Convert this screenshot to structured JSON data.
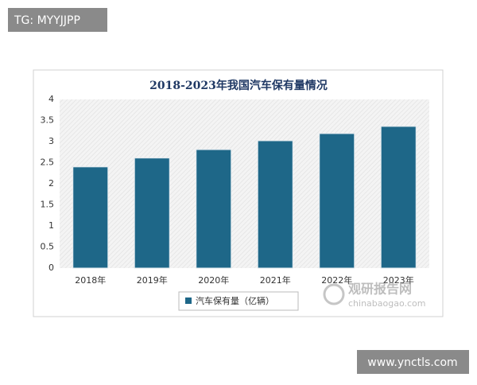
{
  "chart_data": {
    "type": "bar",
    "title": "2018-2023年我国汽车保有量情况",
    "categories": [
      "2018年",
      "2019年",
      "2020年",
      "2021年",
      "2022年",
      "2023年"
    ],
    "series": [
      {
        "name": "汽车保有量（亿辆）",
        "color": "#1e6788",
        "values": [
          2.4,
          2.61,
          2.81,
          3.02,
          3.19,
          3.36
        ]
      }
    ],
    "ylim": [
      0,
      4
    ],
    "yticks": [
      0,
      0.5,
      1,
      1.5,
      2,
      2.5,
      3,
      3.5,
      4
    ],
    "grid": false,
    "legend": "bottom"
  },
  "watermark": {
    "name": "观研报告网",
    "url": "chinabaogao.com"
  },
  "overlay_top": "TG: MYYJJPP",
  "overlay_bottom": "www.ynctls.com"
}
